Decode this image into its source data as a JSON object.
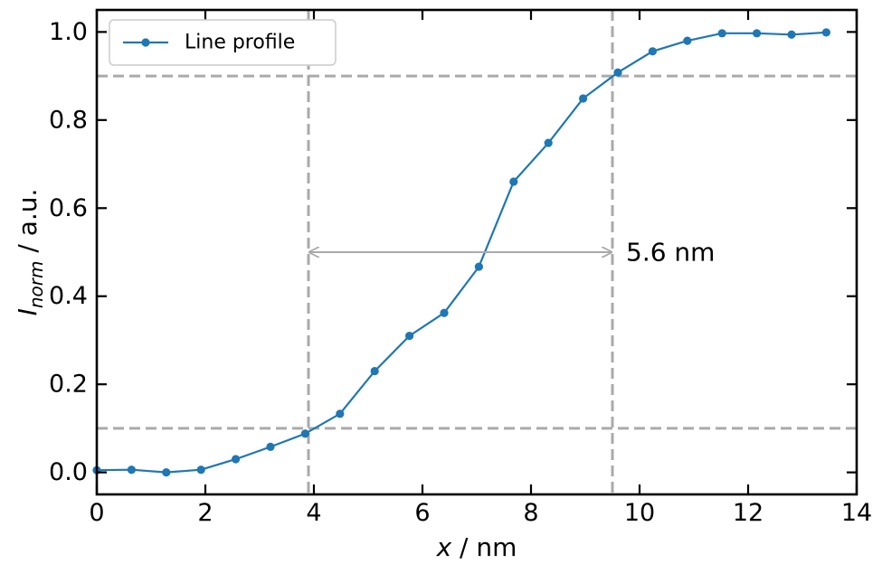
{
  "chart_data": {
    "type": "line",
    "xlabel": {
      "var": "x",
      "rest": " / nm"
    },
    "ylabel": {
      "var": "I",
      "sub": "norm",
      "rest": " / a.u."
    },
    "xlim": [
      0,
      14
    ],
    "ylim": [
      -0.05,
      1.05
    ],
    "xticks": [
      0,
      2,
      4,
      6,
      8,
      10,
      12,
      14
    ],
    "yticks": [
      0.0,
      0.2,
      0.4,
      0.6,
      0.8,
      1.0
    ],
    "xtick_labels": [
      "0",
      "2",
      "4",
      "6",
      "8",
      "10",
      "12",
      "14"
    ],
    "ytick_labels": [
      "0.0",
      "0.2",
      "0.4",
      "0.6",
      "0.8",
      "1.0"
    ],
    "grid": false,
    "legend_position": "top-left",
    "series": [
      {
        "name": "Line profile",
        "color": "#1f77b4",
        "x": [
          0.0,
          0.64,
          1.28,
          1.92,
          2.56,
          3.2,
          3.84,
          4.48,
          5.12,
          5.76,
          6.4,
          7.04,
          7.68,
          8.32,
          8.96,
          9.6,
          10.24,
          10.88,
          11.52,
          12.16,
          12.8,
          13.44
        ],
        "y": [
          0.005,
          0.006,
          0.0,
          0.006,
          0.03,
          0.058,
          0.088,
          0.133,
          0.23,
          0.31,
          0.362,
          0.467,
          0.66,
          0.748,
          0.849,
          0.908,
          0.956,
          0.98,
          0.997,
          0.997,
          0.994,
          0.999
        ]
      }
    ],
    "reference_lines": {
      "color": "#aaaaaa",
      "horizontal": [
        0.1,
        0.9
      ],
      "vertical": [
        3.9,
        9.5
      ]
    },
    "annotation": {
      "text": "5.6 nm",
      "arrow_from": [
        3.9,
        0.5
      ],
      "arrow_to": [
        9.5,
        0.5
      ],
      "text_x": 9.75,
      "text_y": 0.5,
      "color": "#aaaaaa"
    }
  }
}
